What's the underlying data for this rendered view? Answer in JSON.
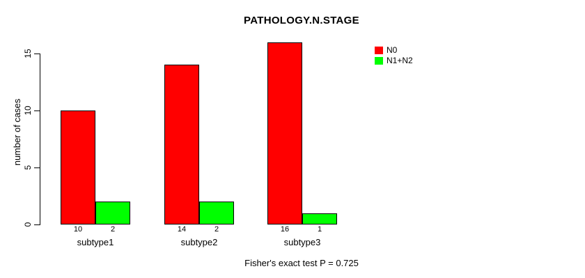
{
  "figure": {
    "title": "PATHOLOGY.N.STAGE",
    "annotation": "Fisher's exact test P = 0.725"
  },
  "chart_data": {
    "type": "bar",
    "title": "PATHOLOGY.N.STAGE",
    "categories": [
      "subtype1",
      "subtype2",
      "subtype3"
    ],
    "series": [
      {
        "name": "N0",
        "color": "#ff0000",
        "values": [
          10,
          14,
          16
        ]
      },
      {
        "name": "N1+N2",
        "color": "#00ff00",
        "values": [
          2,
          2,
          1
        ]
      }
    ],
    "value_labels": [
      [
        "10",
        "2"
      ],
      [
        "14",
        "2"
      ],
      [
        "16",
        "1"
      ]
    ],
    "xlabel": "",
    "ylabel": "number of cases",
    "yticks": [
      0,
      5,
      10,
      15
    ],
    "ylim": [
      0,
      16.6
    ],
    "grid": false,
    "legend": {
      "position": "top-right",
      "entries": [
        "N0",
        "N1+N2"
      ]
    },
    "annotation": "Fisher's exact test P = 0.725",
    "bar_border_color": "#000000",
    "axis_color": "#000000",
    "background": "#ffffff"
  }
}
